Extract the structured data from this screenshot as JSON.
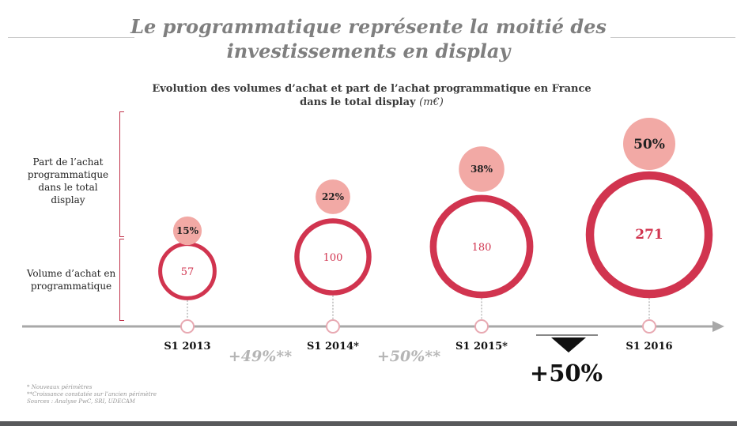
{
  "title": "Le programmatique représente la moitié des investissements en display",
  "subtitle": {
    "text": "Evolution des volumes d’achat et part de l’achat programmatique en France dans le total display",
    "unit": "(m€)"
  },
  "row_labels": {
    "share": "Part de l’achat programmatique dans le total display",
    "volume": "Volume d’achat en programmatique"
  },
  "colors": {
    "volume_ring": "#d1344f",
    "share_bubble": "#f2a9a5",
    "axis": "#a8a8a8",
    "growth_text": "#b5b5b5",
    "title_text": "#7f7f7f"
  },
  "chart_data": {
    "type": "bubble",
    "title": "Evolution des volumes d’achat et part de l’achat programmatique en France dans le total display (m€)",
    "categories": [
      "S1 2013",
      "S1 2014*",
      "S1 2015*",
      "S1 2016"
    ],
    "series": [
      {
        "name": "Volume d’achat en programmatique",
        "values": [
          57,
          100,
          180,
          271
        ]
      },
      {
        "name": "Part de l’achat programmatique dans le total display",
        "values": [
          15,
          22,
          38,
          50
        ]
      }
    ],
    "share_labels": [
      "15%",
      "22%",
      "38%",
      "50%"
    ],
    "volume_labels": [
      "57",
      "100",
      "180",
      "271"
    ],
    "growth_labels": [
      "+49%**",
      "+50%**"
    ],
    "highlight": "+50%"
  },
  "notes": [
    "* Nouveaux périmètres",
    "**Croissance constatée sur l’ancien périmètre",
    "Sources : Analyse PwC, SRI, UDECAM"
  ]
}
